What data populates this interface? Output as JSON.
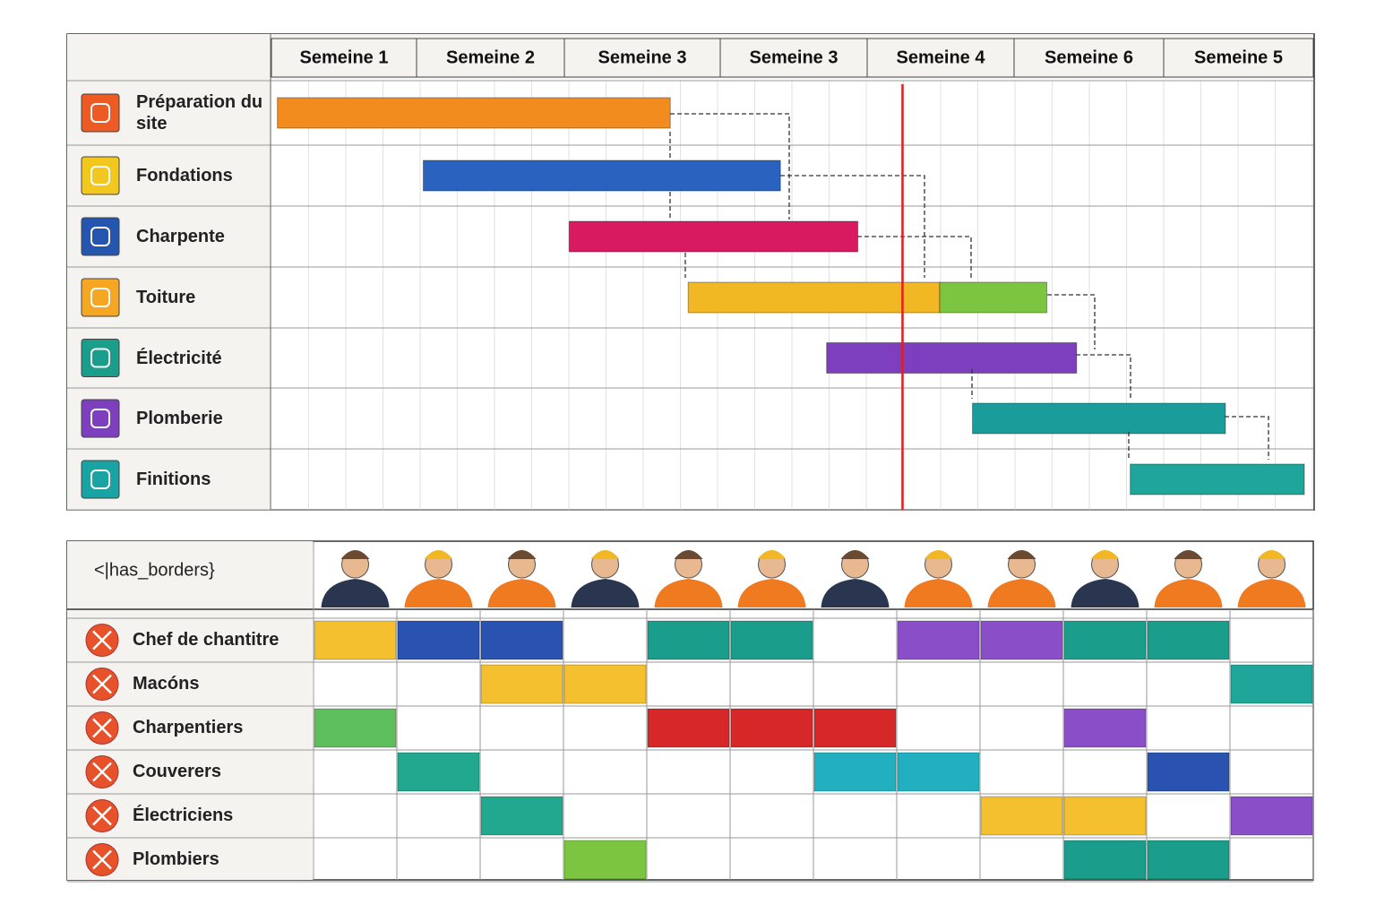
{
  "header": {
    "weeks": [
      "Semeine 1",
      "Semeine 2",
      "Semeine 3",
      "Semeine 3",
      "Semeine 4",
      "Semeine 6",
      "Semeine 5"
    ]
  },
  "tasks": [
    {
      "name": "Préparation du site",
      "icon_color": "#ee5a24",
      "segments": [
        {
          "start": 0.04,
          "end": 2.68,
          "color": "#f28c1e"
        }
      ]
    },
    {
      "name": "Fondations",
      "icon_color": "#f2c81e",
      "segments": [
        {
          "start": 1.02,
          "end": 3.42,
          "color": "#2a62c0"
        }
      ]
    },
    {
      "name": "Charpente",
      "icon_color": "#2456b0",
      "segments": [
        {
          "start": 2.0,
          "end": 3.94,
          "color": "#d81b60"
        }
      ]
    },
    {
      "name": "Toiture",
      "icon_color": "#f5a623",
      "segments": [
        {
          "start": 2.8,
          "end": 4.49,
          "color": "#f2b824"
        },
        {
          "start": 4.49,
          "end": 5.21,
          "color": "#7cc540"
        }
      ]
    },
    {
      "name": "Électricité",
      "icon_color": "#1a9d8a",
      "segments": [
        {
          "start": 3.73,
          "end": 5.41,
          "color": "#7e3fbf"
        }
      ]
    },
    {
      "name": "Plomberie",
      "icon_color": "#7e3fbf",
      "segments": [
        {
          "start": 4.71,
          "end": 6.41,
          "color": "#1a9d9a"
        }
      ]
    },
    {
      "name": "Finitions",
      "icon_color": "#1aa3a3",
      "segments": [
        {
          "start": 5.77,
          "end": 6.94,
          "color": "#1fa59a"
        }
      ]
    }
  ],
  "today": 4.24,
  "resources": {
    "title": "<|has_borders}",
    "rows": [
      {
        "name": "Chef de chantitre",
        "cells": [
          "#f5c030",
          "#2a52b0",
          "#2a52b0",
          null,
          "#1a9d8a",
          "#1a9d8a",
          null,
          "#8a4fc8",
          "#8a4fc8",
          "#1a9d8a",
          "#1a9d8a",
          null
        ]
      },
      {
        "name": "Macóns",
        "cells": [
          null,
          null,
          "#f5c030",
          "#f5c030",
          null,
          null,
          null,
          null,
          null,
          null,
          null,
          "#1fa59a"
        ]
      },
      {
        "name": "Charpentiers",
        "cells": [
          "#5cbf5c",
          null,
          null,
          null,
          "#d62828",
          "#d62828",
          "#d62828",
          null,
          null,
          "#8a4fc8",
          null,
          null
        ]
      },
      {
        "name": "Couverers",
        "cells": [
          null,
          "#22a88f",
          null,
          null,
          null,
          null,
          "#22b0c0",
          "#22b0c0",
          null,
          null,
          "#2a52b0",
          null
        ]
      },
      {
        "name": "Électriciens",
        "cells": [
          null,
          null,
          "#22a88f",
          null,
          null,
          null,
          null,
          null,
          "#f5c030",
          "#f5c030",
          null,
          "#8a4fc8"
        ]
      },
      {
        "name": "Plombiers",
        "cells": [
          null,
          null,
          null,
          "#7cc540",
          null,
          null,
          null,
          null,
          null,
          "#1a9d8a",
          "#1a9d8a",
          null
        ]
      }
    ]
  }
}
